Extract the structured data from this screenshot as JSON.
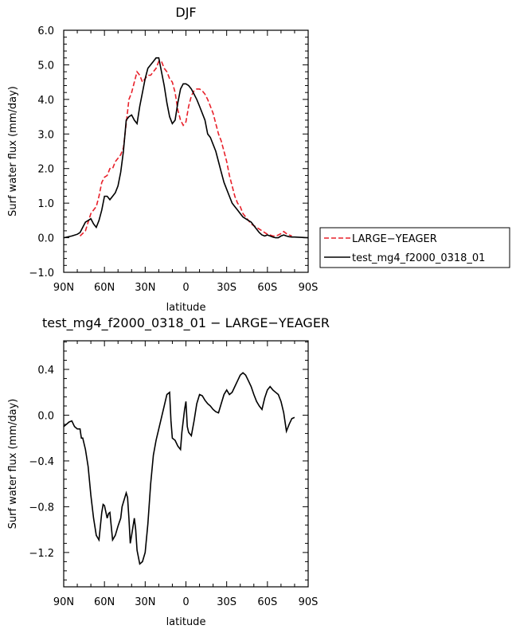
{
  "chart_data": [
    {
      "type": "line",
      "title": "DJF",
      "xlabel": "latitude",
      "ylabel": "Surf water flux (mm/day)",
      "xlim": [
        -90,
        90
      ],
      "ylim": [
        -1.0,
        6.0
      ],
      "x_ticks": [
        -90,
        -60,
        -30,
        0,
        30,
        60,
        90
      ],
      "x_tick_labels": [
        "90N",
        "60N",
        "30N",
        "0",
        "30S",
        "60S",
        "90S"
      ],
      "y_ticks": [
        -1.0,
        0.0,
        1.0,
        2.0,
        3.0,
        4.0,
        5.0,
        6.0
      ],
      "y_tick_labels": [
        "−1.0",
        "0.0",
        "1.0",
        "2.0",
        "3.0",
        "4.0",
        "5.0",
        "6.0"
      ],
      "grid": false,
      "legend_position": "right",
      "series": [
        {
          "name": "LARGE−YEAGER",
          "color": "#e8202a",
          "dash": true,
          "x": [
            -78,
            -74,
            -72,
            -70,
            -68,
            -66,
            -64,
            -62,
            -60,
            -58,
            -56,
            -54,
            -52,
            -50,
            -48,
            -46,
            -44,
            -42,
            -40,
            -38,
            -36,
            -34,
            -32,
            -30,
            -28,
            -26,
            -24,
            -22,
            -20,
            -18,
            -16,
            -14,
            -12,
            -10,
            -8,
            -6,
            -4,
            -2,
            0,
            2,
            4,
            6,
            8,
            10,
            12,
            14,
            16,
            18,
            20,
            22,
            24,
            26,
            28,
            30,
            32,
            34,
            36,
            38,
            40,
            42,
            44,
            46,
            48,
            50,
            52,
            54,
            56,
            58,
            60,
            62,
            64,
            66,
            68,
            70,
            72,
            74,
            76,
            78
          ],
          "y": [
            0.05,
            0.2,
            0.45,
            0.7,
            0.8,
            0.9,
            1.2,
            1.6,
            1.75,
            1.8,
            2.0,
            2.0,
            2.2,
            2.3,
            2.4,
            2.6,
            3.3,
            4.0,
            4.2,
            4.5,
            4.8,
            4.7,
            4.5,
            4.6,
            4.7,
            4.7,
            4.8,
            4.9,
            5.1,
            5.1,
            4.9,
            4.8,
            4.6,
            4.5,
            4.2,
            3.7,
            3.4,
            3.25,
            3.35,
            3.8,
            4.1,
            4.25,
            4.3,
            4.3,
            4.25,
            4.15,
            4.0,
            3.8,
            3.6,
            3.3,
            3.0,
            2.8,
            2.5,
            2.2,
            1.8,
            1.5,
            1.2,
            1.0,
            0.9,
            0.7,
            0.6,
            0.5,
            0.4,
            0.35,
            0.3,
            0.25,
            0.2,
            0.15,
            0.1,
            0.08,
            0.05,
            0.05,
            0.08,
            0.12,
            0.18,
            0.12,
            0.08,
            0.05
          ]
        },
        {
          "name": "test_mg4_f2000_0318_01",
          "color": "#000000",
          "dash": false,
          "x": [
            -90,
            -84,
            -80,
            -78,
            -76,
            -74,
            -72,
            -70,
            -68,
            -66,
            -64,
            -62,
            -60,
            -58,
            -56,
            -54,
            -52,
            -50,
            -48,
            -46,
            -44,
            -42,
            -40,
            -38,
            -36,
            -34,
            -32,
            -30,
            -28,
            -26,
            -24,
            -22,
            -20,
            -18,
            -16,
            -14,
            -12,
            -10,
            -8,
            -6,
            -4,
            -2,
            0,
            2,
            4,
            6,
            8,
            10,
            12,
            14,
            16,
            18,
            20,
            22,
            24,
            26,
            28,
            30,
            32,
            34,
            36,
            38,
            40,
            42,
            44,
            46,
            48,
            50,
            52,
            54,
            56,
            58,
            60,
            62,
            64,
            66,
            68,
            70,
            72,
            74,
            76,
            78,
            80,
            84,
            90
          ],
          "y": [
            0.0,
            0.05,
            0.1,
            0.15,
            0.3,
            0.45,
            0.5,
            0.55,
            0.4,
            0.3,
            0.5,
            0.8,
            1.2,
            1.2,
            1.1,
            1.2,
            1.3,
            1.5,
            1.9,
            2.5,
            3.4,
            3.5,
            3.55,
            3.4,
            3.3,
            3.8,
            4.2,
            4.6,
            4.9,
            5.0,
            5.1,
            5.2,
            5.2,
            4.8,
            4.4,
            3.9,
            3.5,
            3.3,
            3.4,
            3.9,
            4.3,
            4.45,
            4.45,
            4.4,
            4.3,
            4.15,
            4.0,
            3.8,
            3.6,
            3.4,
            3.0,
            2.9,
            2.7,
            2.5,
            2.2,
            1.9,
            1.6,
            1.4,
            1.2,
            1.0,
            0.9,
            0.8,
            0.7,
            0.6,
            0.55,
            0.5,
            0.45,
            0.35,
            0.25,
            0.15,
            0.08,
            0.05,
            0.08,
            0.05,
            0.02,
            0.0,
            0.0,
            0.05,
            0.08,
            0.05,
            0.03,
            0.02,
            0.02,
            0.01,
            0.0
          ]
        }
      ]
    },
    {
      "type": "line",
      "title": "test_mg4_f2000_0318_01 − LARGE−YEAGER",
      "xlabel": "latitude",
      "ylabel": "Surf water flux (mm/day)",
      "xlim": [
        -90,
        90
      ],
      "ylim": [
        -1.5,
        0.65
      ],
      "x_ticks": [
        -90,
        -60,
        -30,
        0,
        30,
        60,
        90
      ],
      "x_tick_labels": [
        "90N",
        "60N",
        "30N",
        "0",
        "30S",
        "60S",
        "90S"
      ],
      "y_ticks": [
        -1.2,
        -0.8,
        -0.4,
        0.0,
        0.4
      ],
      "y_tick_labels": [
        "−1.2",
        "−0.8",
        "−0.4",
        "0.0",
        "0.4"
      ],
      "grid": false,
      "series": [
        {
          "color": "#000000",
          "dash": false,
          "x": [
            -90,
            -88,
            -86,
            -84,
            -82,
            -80,
            -78,
            -77,
            -76,
            -74,
            -72,
            -70,
            -68,
            -66,
            -64,
            -62,
            -61,
            -60,
            -58,
            -57,
            -56,
            -54,
            -53,
            -52,
            -50,
            -48,
            -47,
            -46,
            -44,
            -43,
            -42,
            -41,
            -40,
            -38,
            -37,
            -36,
            -34,
            -32,
            -30,
            -28,
            -26,
            -24,
            -22,
            -20,
            -18,
            -16,
            -14,
            -12,
            -11,
            -10,
            -8,
            -6,
            -4,
            -3,
            -2,
            -1,
            0,
            1,
            2,
            4,
            6,
            8,
            10,
            12,
            14,
            16,
            18,
            20,
            22,
            24,
            26,
            28,
            30,
            32,
            34,
            36,
            38,
            40,
            42,
            44,
            46,
            48,
            50,
            52,
            54,
            56,
            58,
            60,
            62,
            64,
            66,
            68,
            70,
            72,
            74,
            76,
            78,
            80
          ],
          "y": [
            -0.1,
            -0.08,
            -0.06,
            -0.05,
            -0.1,
            -0.12,
            -0.12,
            -0.2,
            -0.2,
            -0.3,
            -0.45,
            -0.7,
            -0.9,
            -1.05,
            -1.09,
            -0.85,
            -0.78,
            -0.79,
            -0.9,
            -0.86,
            -0.85,
            -1.09,
            -1.07,
            -1.05,
            -0.97,
            -0.9,
            -0.8,
            -0.76,
            -0.68,
            -0.72,
            -0.9,
            -1.12,
            -1.05,
            -0.9,
            -1.0,
            -1.18,
            -1.3,
            -1.28,
            -1.2,
            -0.95,
            -0.6,
            -0.35,
            -0.22,
            -0.12,
            -0.02,
            0.08,
            0.18,
            0.2,
            -0.05,
            -0.2,
            -0.22,
            -0.27,
            -0.3,
            -0.15,
            -0.05,
            0.05,
            0.12,
            -0.1,
            -0.15,
            -0.18,
            -0.05,
            0.1,
            0.18,
            0.17,
            0.13,
            0.1,
            0.08,
            0.05,
            0.03,
            0.02,
            0.1,
            0.18,
            0.22,
            0.18,
            0.2,
            0.25,
            0.3,
            0.35,
            0.37,
            0.35,
            0.3,
            0.25,
            0.18,
            0.12,
            0.08,
            0.05,
            0.15,
            0.22,
            0.25,
            0.22,
            0.2,
            0.18,
            0.12,
            0.02,
            -0.14,
            -0.08,
            -0.03,
            -0.02
          ]
        }
      ]
    }
  ]
}
